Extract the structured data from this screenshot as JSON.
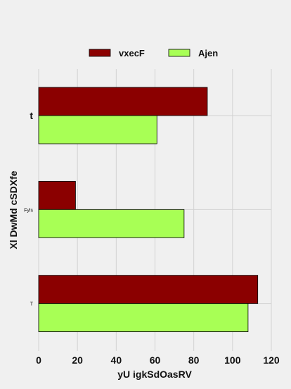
{
  "chart_data": {
    "type": "bar",
    "orientation": "horizontal",
    "title": "",
    "xlabel": "yU igkSdOasRV",
    "ylabel": "Xl DwMd cSDXfe",
    "categories": [
      "t",
      "Fyls",
      "T"
    ],
    "category_label_sizes": [
      "large",
      "small",
      "small"
    ],
    "series": [
      {
        "name": "vxecF",
        "color": "#8b0000",
        "values": [
          87,
          19,
          113
        ]
      },
      {
        "name": "Ajen",
        "color": "#a8ff55",
        "values": [
          61,
          75,
          108
        ]
      }
    ],
    "xlim": [
      0,
      120
    ],
    "xticks": [
      0,
      20,
      40,
      60,
      80,
      100,
      120
    ],
    "grid": true,
    "legend_position": "top"
  }
}
